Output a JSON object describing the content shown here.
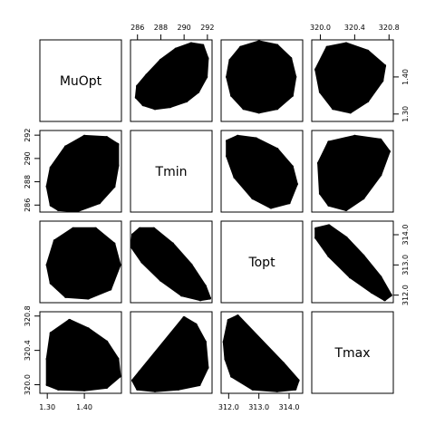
{
  "chart_data": {
    "type": "scatter",
    "title": "",
    "variables": [
      "MuOpt",
      "Tmin",
      "Topt",
      "Tmax"
    ],
    "grid": false,
    "marker_color": "#000000",
    "axes": {
      "MuOpt": {
        "range": [
          1.28,
          1.5
        ],
        "ticks": [
          1.3,
          1.4
        ],
        "tick_labels": [
          "1.30",
          "1.40"
        ]
      },
      "Tmin": {
        "range": [
          285.4,
          292.4
        ],
        "ticks": [
          286,
          288,
          290,
          292
        ],
        "tick_labels": [
          "286",
          "288",
          "290",
          "292"
        ]
      },
      "Topt": {
        "range": [
          311.75,
          314.45
        ],
        "ticks": [
          312.0,
          313.0,
          314.0
        ],
        "tick_labels": [
          "312.0",
          "313.0",
          "314.0"
        ]
      },
      "Tmax": {
        "range": [
          319.9,
          320.85
        ],
        "ticks": [
          320.0,
          320.4,
          320.8
        ],
        "tick_labels": [
          "320.0",
          "320.4",
          "320.8"
        ]
      }
    },
    "tick_placement": {
      "MuOpt": "bottom",
      "Tmin": "top",
      "Topt": "bottom",
      "Tmax": "top",
      "MuOpt_y": "right",
      "Tmin_y": "left",
      "Topt_y": "right",
      "Tmax_y": "left"
    },
    "panels": [
      {
        "row": 0,
        "col": 1,
        "x": "Tmin",
        "y": "MuOpt",
        "points": [
          [
            285.9,
            1.345
          ],
          [
            286.5,
            1.325
          ],
          [
            287.5,
            1.315
          ],
          [
            288.8,
            1.32
          ],
          [
            290.2,
            1.335
          ],
          [
            291.2,
            1.36
          ],
          [
            291.9,
            1.4
          ],
          [
            292.0,
            1.45
          ],
          [
            291.6,
            1.485
          ],
          [
            290.6,
            1.49
          ],
          [
            289.3,
            1.475
          ],
          [
            288.0,
            1.445
          ],
          [
            286.8,
            1.405
          ],
          [
            286.0,
            1.375
          ],
          [
            288.5,
            1.4
          ],
          [
            290.0,
            1.42
          ]
        ]
      },
      {
        "row": 0,
        "col": 2,
        "x": "Topt",
        "y": "MuOpt",
        "points": [
          [
            311.95,
            1.4
          ],
          [
            312.1,
            1.35
          ],
          [
            312.5,
            1.315
          ],
          [
            313.0,
            1.305
          ],
          [
            313.6,
            1.315
          ],
          [
            314.1,
            1.35
          ],
          [
            314.2,
            1.4
          ],
          [
            314.05,
            1.45
          ],
          [
            313.6,
            1.485
          ],
          [
            313.0,
            1.495
          ],
          [
            312.4,
            1.48
          ],
          [
            312.05,
            1.445
          ],
          [
            313.0,
            1.4
          ]
        ]
      },
      {
        "row": 0,
        "col": 3,
        "x": "Tmax",
        "y": "MuOpt",
        "points": [
          [
            319.95,
            1.42
          ],
          [
            320.0,
            1.36
          ],
          [
            320.15,
            1.315
          ],
          [
            320.35,
            1.305
          ],
          [
            320.55,
            1.335
          ],
          [
            320.72,
            1.39
          ],
          [
            320.75,
            1.43
          ],
          [
            320.55,
            1.47
          ],
          [
            320.3,
            1.49
          ],
          [
            320.08,
            1.48
          ],
          [
            320.3,
            1.4
          ]
        ]
      },
      {
        "row": 1,
        "col": 0,
        "x": "MuOpt",
        "y": "Tmin",
        "points": [
          [
            1.31,
            286.0
          ],
          [
            1.33,
            285.6
          ],
          [
            1.38,
            285.5
          ],
          [
            1.44,
            286.2
          ],
          [
            1.48,
            287.6
          ],
          [
            1.49,
            289.4
          ],
          [
            1.49,
            291.2
          ],
          [
            1.46,
            291.8
          ],
          [
            1.4,
            291.9
          ],
          [
            1.35,
            291.0
          ],
          [
            1.31,
            289.2
          ],
          [
            1.3,
            287.6
          ],
          [
            1.4,
            288.8
          ]
        ]
      },
      {
        "row": 1,
        "col": 2,
        "x": "Topt",
        "y": "Tmin",
        "points": [
          [
            311.95,
            291.5
          ],
          [
            312.3,
            291.9
          ],
          [
            312.9,
            291.7
          ],
          [
            313.6,
            290.8
          ],
          [
            314.1,
            289.3
          ],
          [
            314.25,
            287.8
          ],
          [
            314.0,
            286.2
          ],
          [
            313.4,
            285.8
          ],
          [
            312.8,
            286.6
          ],
          [
            312.2,
            288.4
          ],
          [
            311.95,
            290.2
          ],
          [
            313.0,
            289.0
          ]
        ]
      },
      {
        "row": 1,
        "col": 3,
        "x": "Tmax",
        "y": "Tmin",
        "points": [
          [
            320.0,
            287.0
          ],
          [
            320.1,
            286.0
          ],
          [
            320.3,
            285.6
          ],
          [
            320.5,
            286.6
          ],
          [
            320.7,
            288.6
          ],
          [
            320.8,
            290.6
          ],
          [
            320.7,
            291.6
          ],
          [
            320.4,
            291.9
          ],
          [
            320.1,
            291.4
          ],
          [
            319.98,
            289.6
          ],
          [
            320.35,
            289.0
          ]
        ]
      },
      {
        "row": 2,
        "col": 0,
        "x": "MuOpt",
        "y": "Topt",
        "points": [
          [
            1.3,
            313.0
          ],
          [
            1.32,
            313.8
          ],
          [
            1.37,
            314.2
          ],
          [
            1.43,
            314.2
          ],
          [
            1.48,
            313.7
          ],
          [
            1.495,
            313.0
          ],
          [
            1.47,
            312.2
          ],
          [
            1.41,
            311.9
          ],
          [
            1.35,
            311.95
          ],
          [
            1.31,
            312.4
          ],
          [
            1.4,
            313.0
          ]
        ]
      },
      {
        "row": 2,
        "col": 1,
        "x": "Tmin",
        "y": "Topt",
        "points": [
          [
            285.6,
            314.0
          ],
          [
            286.2,
            314.2
          ],
          [
            287.4,
            314.2
          ],
          [
            289.0,
            313.7
          ],
          [
            290.6,
            313.0
          ],
          [
            291.8,
            312.3
          ],
          [
            292.2,
            311.9
          ],
          [
            291.4,
            311.85
          ],
          [
            289.8,
            312.0
          ],
          [
            288.0,
            312.5
          ],
          [
            286.4,
            313.1
          ],
          [
            285.5,
            313.6
          ],
          [
            288.8,
            313.1
          ]
        ]
      },
      {
        "row": 2,
        "col": 3,
        "x": "Tmax",
        "y": "Topt",
        "points": [
          [
            319.95,
            314.2
          ],
          [
            320.1,
            314.3
          ],
          [
            320.3,
            313.9
          ],
          [
            320.5,
            313.3
          ],
          [
            320.7,
            312.6
          ],
          [
            320.82,
            312.0
          ],
          [
            320.75,
            311.85
          ],
          [
            320.6,
            312.1
          ],
          [
            320.35,
            312.6
          ],
          [
            320.1,
            313.3
          ],
          [
            319.95,
            313.9
          ],
          [
            320.3,
            313.3
          ]
        ]
      },
      {
        "row": 3,
        "col": 0,
        "x": "MuOpt",
        "y": "Tmax",
        "points": [
          [
            1.3,
            320.0
          ],
          [
            1.33,
            319.95
          ],
          [
            1.4,
            319.94
          ],
          [
            1.46,
            319.97
          ],
          [
            1.495,
            320.1
          ],
          [
            1.49,
            320.3
          ],
          [
            1.46,
            320.5
          ],
          [
            1.41,
            320.65
          ],
          [
            1.36,
            320.75
          ],
          [
            1.31,
            320.6
          ],
          [
            1.3,
            320.3
          ],
          [
            1.4,
            320.25
          ]
        ]
      },
      {
        "row": 3,
        "col": 1,
        "x": "Tmin",
        "y": "Tmax",
        "points": [
          [
            285.6,
            320.05
          ],
          [
            286.0,
            319.95
          ],
          [
            287.5,
            319.93
          ],
          [
            289.5,
            319.95
          ],
          [
            291.3,
            320.0
          ],
          [
            292.0,
            320.2
          ],
          [
            291.8,
            320.5
          ],
          [
            291.0,
            320.7
          ],
          [
            290.0,
            320.78
          ],
          [
            289.0,
            320.6
          ],
          [
            287.6,
            320.35
          ],
          [
            286.2,
            320.15
          ],
          [
            289.0,
            320.2
          ]
        ]
      },
      {
        "row": 3,
        "col": 2,
        "x": "Topt",
        "y": "Tmax",
        "points": [
          [
            311.85,
            320.5
          ],
          [
            312.0,
            320.75
          ],
          [
            312.3,
            320.8
          ],
          [
            312.6,
            320.65
          ],
          [
            313.2,
            320.45
          ],
          [
            313.8,
            320.25
          ],
          [
            314.3,
            320.05
          ],
          [
            314.2,
            319.95
          ],
          [
            313.6,
            319.93
          ],
          [
            312.8,
            319.95
          ],
          [
            312.1,
            320.1
          ],
          [
            311.9,
            320.3
          ],
          [
            312.9,
            320.3
          ]
        ]
      }
    ]
  }
}
